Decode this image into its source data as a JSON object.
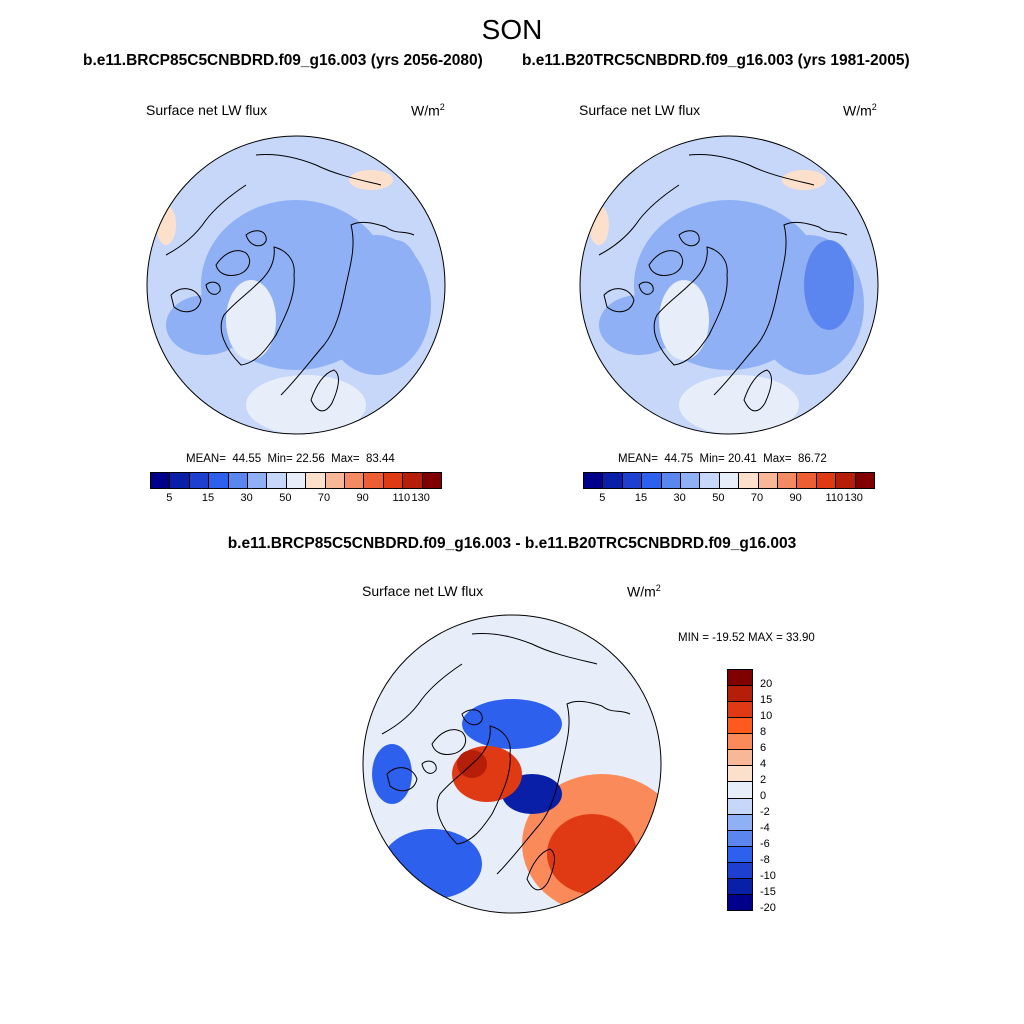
{
  "title": "SON",
  "panels": [
    {
      "case_title": "b.e11.BRCP85C5CNBDRD.f09_g16.003 (yrs 2056-2080)",
      "variable": "Surface net LW flux",
      "units": "W/m",
      "units_exp": "2",
      "stats": {
        "mean_label": "MEAN=",
        "mean": "44.55",
        "min_label": "Min=",
        "min": "22.56",
        "max_label": "Max=",
        "max": "83.44"
      }
    },
    {
      "case_title": "b.e11.B20TRC5CNBDRD.f09_g16.003 (yrs 1981-2005)",
      "variable": "Surface net LW flux",
      "units": "W/m",
      "units_exp": "2",
      "stats": {
        "mean_label": "MEAN=",
        "mean": "44.75",
        "min_label": "Min=",
        "min": "20.41",
        "max_label": "Max=",
        "max": "86.72"
      }
    }
  ],
  "abs_colorbar": {
    "colors": [
      "#00008b",
      "#0a1fa8",
      "#1e3fd0",
      "#2e60ee",
      "#5b86f0",
      "#8fb0f5",
      "#c6d7fa",
      "#e8eef9",
      "#fde0cc",
      "#f8b898",
      "#f48a62",
      "#ee5e34",
      "#e03a14",
      "#b51e08",
      "#800000"
    ],
    "ticks": [
      "5",
      "15",
      "30",
      "50",
      "70",
      "90",
      "110",
      "130"
    ]
  },
  "diff": {
    "title": "b.e11.BRCP85C5CNBDRD.f09_g16.003 - b.e11.B20TRC5CNBDRD.f09_g16.003",
    "variable": "Surface net LW flux",
    "units": "W/m",
    "units_exp": "2",
    "minmax_label": "MIN = -19.52 MAX =  33.90",
    "colorbar": {
      "colors": [
        "#800000",
        "#b51e08",
        "#e03a14",
        "#ff5a1e",
        "#fb8a5a",
        "#f8b898",
        "#fde0cc",
        "#e8eef9",
        "#c6d7fa",
        "#8fb0f5",
        "#5b86f0",
        "#2e60ee",
        "#1e3fd0",
        "#0a1fa8",
        "#00008b"
      ],
      "ticks": [
        "20",
        "15",
        "10",
        "8",
        "6",
        "4",
        "2",
        "0",
        "-2",
        "-4",
        "-6",
        "-8",
        "-10",
        "-15",
        "-20"
      ]
    }
  },
  "map_colors": {
    "ocean_base": "#c6d7fa",
    "mid_blue": "#8fb0f5",
    "deep_blue": "#5b86f0",
    "light": "#e8eef9",
    "warm": "#fde0cc",
    "diff_base": "#e8eef9",
    "diff_red": "#e03a14",
    "diff_darkred": "#b51e08",
    "diff_orange": "#fb8a5a",
    "diff_blue": "#2e60ee",
    "diff_darkblue": "#0a1fa8",
    "land_line": "#000000"
  }
}
